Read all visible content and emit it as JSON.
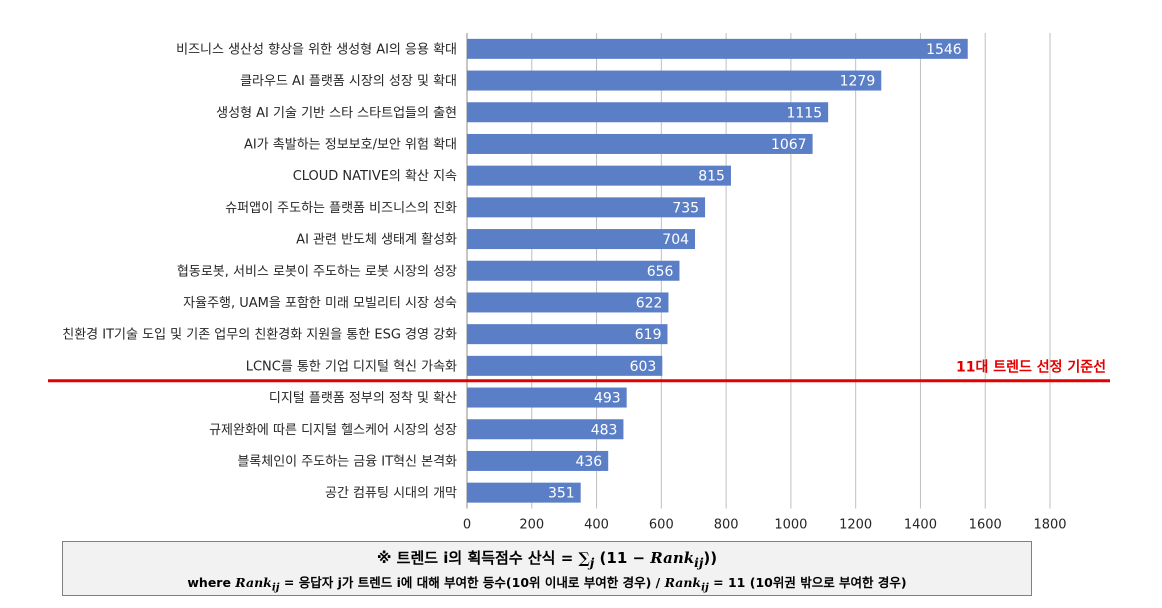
{
  "chart_data": {
    "type": "bar",
    "orientation": "horizontal",
    "categories": [
      "비즈니스 생산성 향상을 위한 생성형 AI의 응용 확대",
      "클라우드 AI 플랫폼 시장의 성장 및 확대",
      "생성형 AI 기술 기반 스타 스타트업들의 출현",
      "AI가 촉발하는 정보보호/보안 위험 확대",
      "CLOUD NATIVE의 확산 지속",
      "슈퍼앱이 주도하는 플랫폼 비즈니스의 진화",
      "AI 관련 반도체 생태계 활성화",
      "협동로봇, 서비스 로봇이 주도하는 로봇 시장의 성장",
      "자율주행, UAM을 포함한 미래 모빌리티 시장 성숙",
      "친환경 IT기술 도입 및 기존 업무의 친환경화 지원을 통한 ESG 경영 강화",
      "LCNC를 통한 기업 디지털 혁신 가속화",
      "디지털 플랫폼 정부의 정착 및 확산",
      "규제완화에 따른 디지털 헬스케어 시장의 성장",
      "블록체인이 주도하는 금융 IT혁신 본격화",
      "공간 컴퓨팅 시대의 개막"
    ],
    "values": [
      1546,
      1279,
      1115,
      1067,
      815,
      735,
      704,
      656,
      622,
      619,
      603,
      493,
      483,
      436,
      351
    ],
    "xlim": [
      0,
      1800
    ],
    "xticks": [
      0,
      200,
      400,
      600,
      800,
      1000,
      1200,
      1400,
      1600,
      1800
    ],
    "grid": "vertical",
    "bar_color": "#5b7fc7",
    "threshold": {
      "after_index": 10,
      "label": "11대 트렌드 선정 기준선",
      "color": "#e30000"
    }
  },
  "formula": {
    "line1_prefix": "※ 트렌드 i의 획득점수 산식 = ",
    "line1_sum": "∑",
    "line1_sum_sub": "j",
    "line1_paren_open": " (11 − ",
    "line1_rank": "Rank",
    "line1_rank_sub": "ij",
    "line1_paren_close": "))",
    "line2_where": "where ",
    "line2_rank_a": "Rank",
    "line2_rank_a_sub": "ij",
    "line2_mid": " = 응답자 j가 트렌드 i에 대해 부여한 등수(10위 이내로 부여한 경우) / ",
    "line2_rank_b": "Rank",
    "line2_rank_b_sub": "ij",
    "line2_end": " = 11 (10위권 밖으로 부여한 경우)"
  }
}
